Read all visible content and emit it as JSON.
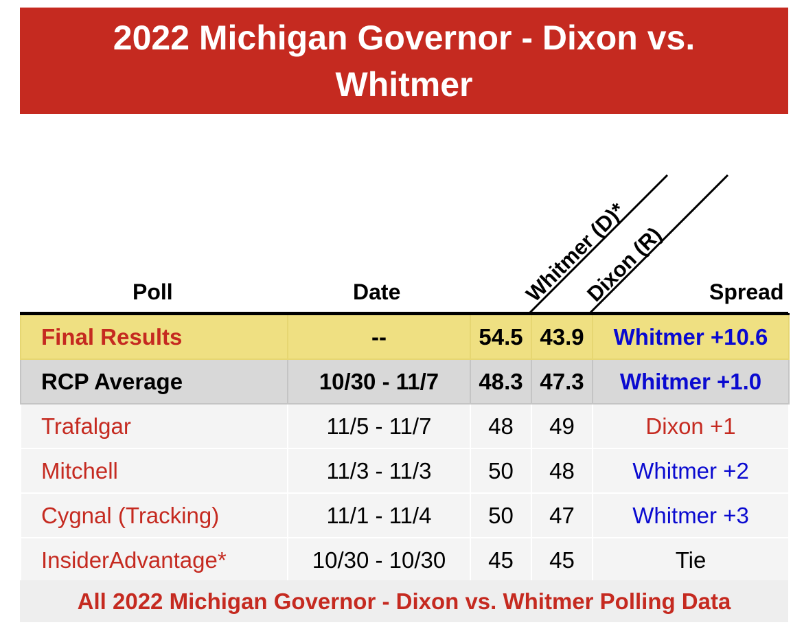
{
  "title": "2022 Michigan Governor - Dixon vs. Whitmer",
  "headers": {
    "poll": "Poll",
    "date": "Date",
    "cand1": "Whitmer (D)*",
    "cand2": "Dixon (R)",
    "spread": "Spread"
  },
  "rows": [
    {
      "poll": "Final Results",
      "date": "--",
      "whitmer": "54.5",
      "dixon": "43.9",
      "spread": "Whitmer +10.6"
    },
    {
      "poll": "RCP Average",
      "date": "10/30 - 11/7",
      "whitmer": "48.3",
      "dixon": "47.3",
      "spread": "Whitmer +1.0"
    },
    {
      "poll": "Trafalgar",
      "date": "11/5 - 11/7",
      "whitmer": "48",
      "dixon": "49",
      "spread": "Dixon +1"
    },
    {
      "poll": "Mitchell",
      "date": "11/3 - 11/3",
      "whitmer": "50",
      "dixon": "48",
      "spread": "Whitmer +2"
    },
    {
      "poll": "Cygnal (Tracking)",
      "date": "11/1 - 11/4",
      "whitmer": "50",
      "dixon": "47",
      "spread": "Whitmer +3"
    },
    {
      "poll": "InsiderAdvantage*",
      "date": "10/30 - 10/30",
      "whitmer": "45",
      "dixon": "45",
      "spread": "Tie"
    }
  ],
  "footer_link": "All 2022 Michigan Governor - Dixon vs. Whitmer Polling Data",
  "colors": {
    "banner": "#c52a20",
    "final_row": "#efe082",
    "average_row": "#d8d8d8",
    "whitmer_spread": "#0a0ad0",
    "dixon_spread": "#c52a20"
  }
}
